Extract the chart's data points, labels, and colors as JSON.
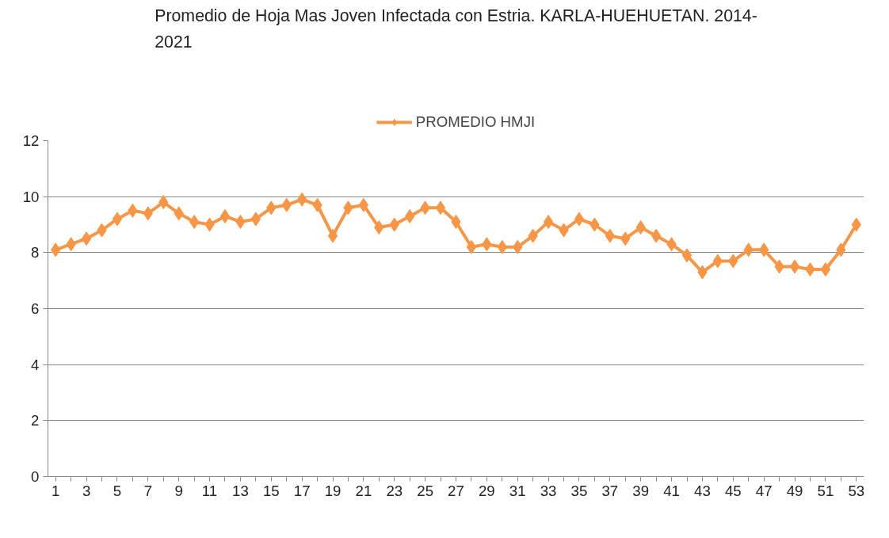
{
  "chart_data": {
    "type": "line",
    "title": "Promedio de Hoja Mas Joven Infectada con Estria. KARLA-HUEHUETAN. 2014-\n2021",
    "x": [
      1,
      2,
      3,
      4,
      5,
      6,
      7,
      8,
      9,
      10,
      11,
      12,
      13,
      14,
      15,
      16,
      17,
      18,
      19,
      20,
      21,
      22,
      23,
      24,
      25,
      26,
      27,
      28,
      29,
      30,
      31,
      32,
      33,
      34,
      35,
      36,
      37,
      38,
      39,
      40,
      41,
      42,
      43,
      44,
      45,
      46,
      47,
      48,
      49,
      50,
      51,
      52,
      53
    ],
    "series": [
      {
        "name": "PROMEDIO HMJI",
        "color": "#f79646",
        "values": [
          8.1,
          8.3,
          8.5,
          8.8,
          9.2,
          9.5,
          9.4,
          9.8,
          9.4,
          9.1,
          9.0,
          9.3,
          9.1,
          9.2,
          9.6,
          9.7,
          9.9,
          9.7,
          8.6,
          9.6,
          9.7,
          8.9,
          9.0,
          9.3,
          9.6,
          9.6,
          9.1,
          8.2,
          8.3,
          8.2,
          8.2,
          8.6,
          9.1,
          8.8,
          9.2,
          9.0,
          8.6,
          8.5,
          8.9,
          8.6,
          8.3,
          7.9,
          7.3,
          7.7,
          7.7,
          8.1,
          8.1,
          7.5,
          7.5,
          7.4,
          7.4,
          8.1,
          9.0
        ]
      }
    ],
    "xlim": [
      0.5,
      53.5
    ],
    "xticks": [
      1,
      {
        "value": 2,
        "label": null
      },
      3,
      {
        "value": 4,
        "label": null
      },
      5,
      {
        "value": 6,
        "label": null
      },
      7,
      {
        "value": 8,
        "label": null
      },
      9,
      {
        "value": 10,
        "label": null
      },
      11,
      {
        "value": 12,
        "label": null
      },
      13,
      {
        "value": 14,
        "label": null
      },
      15,
      {
        "value": 16,
        "label": null
      },
      17,
      {
        "value": 18,
        "label": null
      },
      19,
      {
        "value": 20,
        "label": null
      },
      21,
      {
        "value": 22,
        "label": null
      },
      23,
      {
        "value": 24,
        "label": null
      },
      25,
      {
        "value": 26,
        "label": null
      },
      27,
      {
        "value": 28,
        "label": null
      },
      29,
      {
        "value": 30,
        "label": null
      },
      31,
      {
        "value": 32,
        "label": null
      },
      33,
      {
        "value": 34,
        "label": null
      },
      35,
      {
        "value": 36,
        "label": null
      },
      37,
      {
        "value": 38,
        "label": null
      },
      39,
      {
        "value": 40,
        "label": null
      },
      41,
      {
        "value": 42,
        "label": null
      },
      43,
      {
        "value": 44,
        "label": null
      },
      45,
      {
        "value": 46,
        "label": null
      },
      47,
      {
        "value": 48,
        "label": null
      },
      49,
      {
        "value": 50,
        "label": null
      },
      51,
      {
        "value": 52,
        "label": null
      },
      53
    ],
    "ylim": [
      0,
      12
    ],
    "yticks": [
      0,
      2,
      4,
      6,
      8,
      10,
      12
    ],
    "grid": "y",
    "legend": "top",
    "marker": "diamond",
    "line_style": "solid"
  }
}
